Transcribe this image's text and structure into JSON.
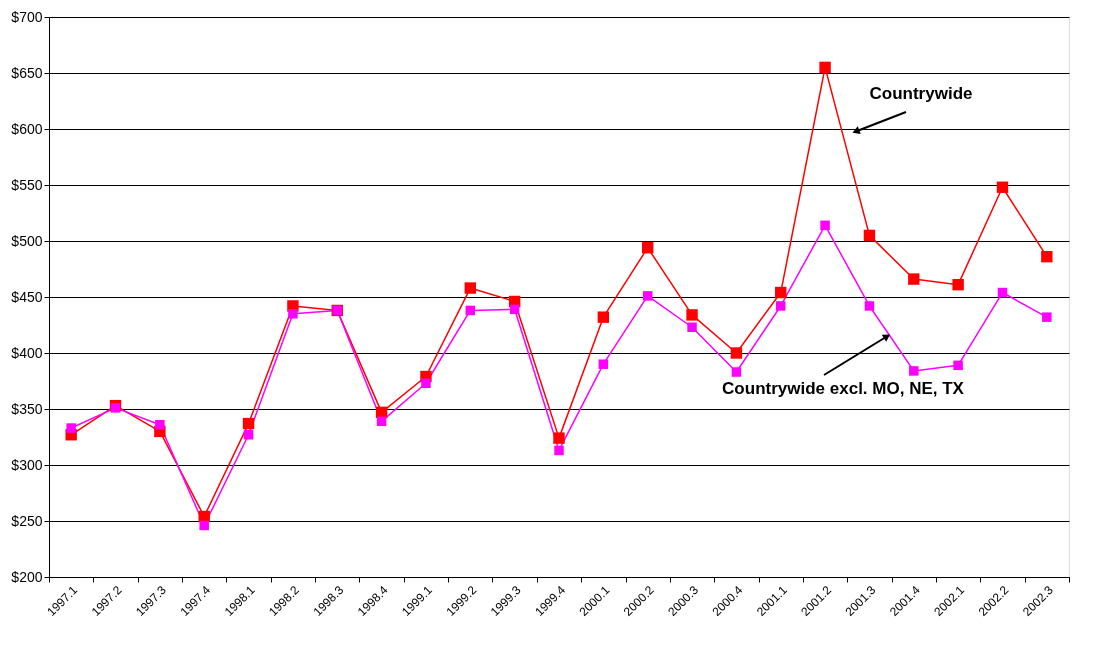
{
  "chart_data": {
    "type": "line",
    "categories": [
      "1997.1",
      "1997.2",
      "1997.3",
      "1997.4",
      "1998.1",
      "1998.2",
      "1998.3",
      "1998.4",
      "1999.1",
      "1999.2",
      "1999.3",
      "1999.4",
      "2000.1",
      "2000.2",
      "2000.3",
      "2000.4",
      "2001.1",
      "2001.2",
      "2001.3",
      "2001.4",
      "2002.1",
      "2002.2",
      "2002.3"
    ],
    "series": [
      {
        "name": "Countrywide",
        "color": "#ff0000",
        "values": [
          327,
          353,
          330,
          254,
          337,
          442,
          438,
          347,
          379,
          458,
          446,
          324,
          432,
          494,
          434,
          400,
          454,
          655,
          505,
          466,
          461,
          548,
          486
        ]
      },
      {
        "name": "Countrywide excl. MO, NE, TX",
        "color": "#ff00ff",
        "values": [
          333,
          351,
          336,
          246,
          327,
          435,
          438,
          339,
          373,
          438,
          439,
          313,
          390,
          451,
          423,
          383,
          442,
          514,
          442,
          384,
          389,
          454,
          432
        ]
      }
    ],
    "ylim": [
      200,
      700
    ],
    "yticks": [
      {
        "value": 200,
        "label": "$200"
      },
      {
        "value": 250,
        "label": "$250"
      },
      {
        "value": 300,
        "label": "$300"
      },
      {
        "value": 350,
        "label": "$350"
      },
      {
        "value": 400,
        "label": "$400"
      },
      {
        "value": 450,
        "label": "$450"
      },
      {
        "value": 500,
        "label": "$500"
      },
      {
        "value": 550,
        "label": "$550"
      },
      {
        "value": 600,
        "label": "$600"
      },
      {
        "value": 650,
        "label": "$650"
      },
      {
        "value": 700,
        "label": "$700"
      }
    ],
    "grid": "y",
    "legend": false,
    "marker": "square",
    "line_style": "solid"
  }
}
